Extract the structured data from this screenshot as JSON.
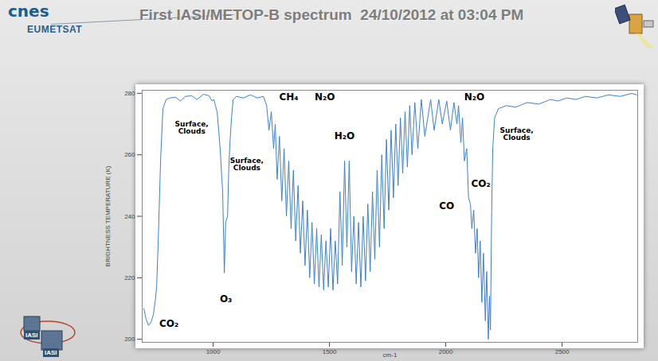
{
  "chart_data": {
    "type": "line",
    "title": "First IASI/METOP-B spectrum  24/10/2012 at 03:04 PM",
    "xlabel": "cm-1",
    "ylabel": "BRIGHTNESS TEMPERATURE (K)",
    "color": "#3c7fd6",
    "grid": false,
    "xlim": [
      695,
      2825
    ],
    "ylim": [
      199,
      281
    ],
    "xticks": [
      1000,
      1500,
      2000,
      2500
    ],
    "yticks": [
      200,
      220,
      240,
      260,
      280
    ],
    "x": [
      702,
      712,
      722,
      733,
      743,
      752,
      757,
      764,
      774,
      784,
      798,
      815,
      839,
      860,
      880,
      908,
      930,
      959,
      983,
      995,
      1003,
      1010,
      1017,
      1024,
      1031,
      1036,
      1041,
      1048,
      1054,
      1062,
      1067,
      1072,
      1079,
      1086,
      1100,
      1130,
      1160,
      1190,
      1216,
      1230,
      1240,
      1250,
      1260,
      1267,
      1275,
      1285,
      1295,
      1305,
      1315,
      1325,
      1335,
      1345,
      1355,
      1365,
      1375,
      1385,
      1395,
      1405,
      1415,
      1425,
      1435,
      1445,
      1455,
      1465,
      1475,
      1485,
      1495,
      1505,
      1515,
      1525,
      1535,
      1545,
      1555,
      1565,
      1575,
      1585,
      1595,
      1605,
      1615,
      1625,
      1635,
      1645,
      1655,
      1665,
      1675,
      1685,
      1695,
      1705,
      1715,
      1725,
      1735,
      1745,
      1755,
      1765,
      1775,
      1785,
      1795,
      1805,
      1815,
      1825,
      1835,
      1845,
      1855,
      1867,
      1880,
      1895,
      1910,
      1935,
      1950,
      1970,
      1985,
      2004,
      2020,
      2035,
      2048,
      2055,
      2065,
      2072,
      2080,
      2090,
      2098,
      2106,
      2112,
      2120,
      2128,
      2135,
      2141,
      2148,
      2155,
      2162,
      2170,
      2176,
      2183,
      2188,
      2192,
      2197,
      2202,
      2210,
      2226,
      2260,
      2300,
      2350,
      2400,
      2450,
      2483,
      2520,
      2560,
      2600,
      2650,
      2700,
      2750,
      2800,
      2820
    ],
    "values": [
      210,
      206.5,
      204.5,
      205.5,
      208,
      213,
      217,
      232,
      258,
      275,
      278,
      278.5,
      278.7,
      277.5,
      279,
      279.2,
      278,
      279.7,
      279.2,
      277.5,
      278,
      276,
      274,
      268,
      261,
      254,
      248,
      221.6,
      238,
      240,
      255,
      263.6,
      272,
      278,
      279,
      278.5,
      279.5,
      278.5,
      279,
      276,
      268,
      274,
      262,
      270,
      252,
      266,
      245,
      262,
      240,
      258,
      236,
      255,
      232,
      250,
      228,
      245,
      224,
      242,
      220,
      238,
      218,
      236,
      217,
      234,
      216,
      232,
      217,
      236,
      216,
      232,
      218,
      248,
      224,
      258,
      230,
      258,
      222,
      240,
      218,
      238,
      217,
      240,
      219,
      244,
      222,
      248,
      226,
      255,
      230,
      260,
      236,
      265,
      242,
      268,
      246,
      270,
      250,
      272,
      254,
      274,
      256,
      276,
      260,
      277,
      262,
      278,
      266,
      278,
      268,
      278,
      270,
      277.5,
      268,
      277,
      270,
      276,
      264,
      272,
      258,
      262,
      246,
      244,
      236,
      242,
      228,
      236,
      220,
      232,
      212,
      228,
      206,
      222,
      200,
      214,
      203,
      240,
      262,
      272,
      275,
      276,
      275.5,
      277,
      276.5,
      278,
      277.5,
      278.5,
      278,
      279,
      278.5,
      279.5,
      279,
      280,
      279.5
    ],
    "annotations": [
      {
        "text": "CO₂",
        "x": 810,
        "y": 205
      },
      {
        "text": "Surface,\nClouds",
        "x": 908,
        "y": 268.8
      },
      {
        "text": "O₃",
        "x": 1055,
        "y": 213
      },
      {
        "text": "Surface,\nClouds",
        "x": 1145,
        "y": 257
      },
      {
        "text": "CH₄",
        "x": 1325,
        "y": 278.7
      },
      {
        "text": "N₂O",
        "x": 1480,
        "y": 278.7
      },
      {
        "text": "H₂O",
        "x": 1565,
        "y": 266.2
      },
      {
        "text": "CO",
        "x": 2004,
        "y": 243.4
      },
      {
        "text": "N₂O",
        "x": 2123,
        "y": 278.7
      },
      {
        "text": "CO₂",
        "x": 2151,
        "y": 250.6
      },
      {
        "text": "Surface,\nClouds",
        "x": 2305,
        "y": 266.8
      }
    ]
  },
  "header": {
    "logos": [
      "cnes",
      "EUMETSAT"
    ]
  },
  "footer": {
    "logos": [
      "IASI",
      "IASI"
    ]
  }
}
